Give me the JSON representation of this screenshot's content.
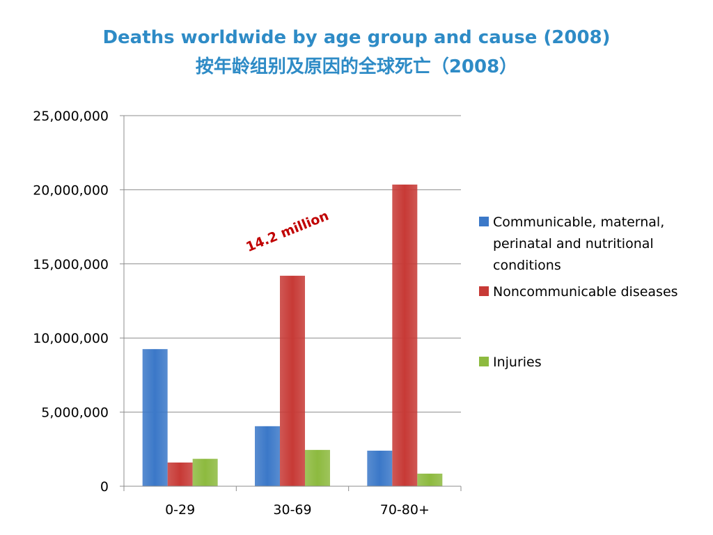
{
  "chart_data": {
    "type": "bar",
    "title": "Deaths worldwide by age group and cause (2008)",
    "subtitle": "按年龄组别及原因的全球死亡（2008）",
    "categories": [
      "0-29",
      "30-69",
      "70-80+"
    ],
    "series": [
      {
        "name": "Communicable, maternal, perinatal and nutritional conditions",
        "color": "#3B78C8",
        "values": [
          9250000,
          4050000,
          2400000
        ]
      },
      {
        "name": "Noncommunicable diseases",
        "color": "#C73A36",
        "values": [
          1600000,
          14200000,
          20350000
        ]
      },
      {
        "name": "Injuries",
        "color": "#8DBA3F",
        "values": [
          1850000,
          2450000,
          850000
        ]
      }
    ],
    "ylim": [
      0,
      25000000
    ],
    "yticks": [
      0,
      5000000,
      10000000,
      15000000,
      20000000,
      25000000
    ],
    "ytick_labels": [
      "0",
      "5,000,000",
      "10,000,000",
      "15,000,000",
      "20,000,000",
      "25,000,000"
    ],
    "xlabel": "",
    "ylabel": "",
    "grid": true,
    "legend_position": "right",
    "legend_lines": [
      [
        "Communicable, maternal,",
        "perinatal and nutritional",
        "conditions"
      ],
      [
        "Noncommunicable diseases"
      ],
      [
        "Injuries"
      ]
    ],
    "annotation": {
      "text": "14.2 million",
      "color": "#C00000"
    }
  }
}
